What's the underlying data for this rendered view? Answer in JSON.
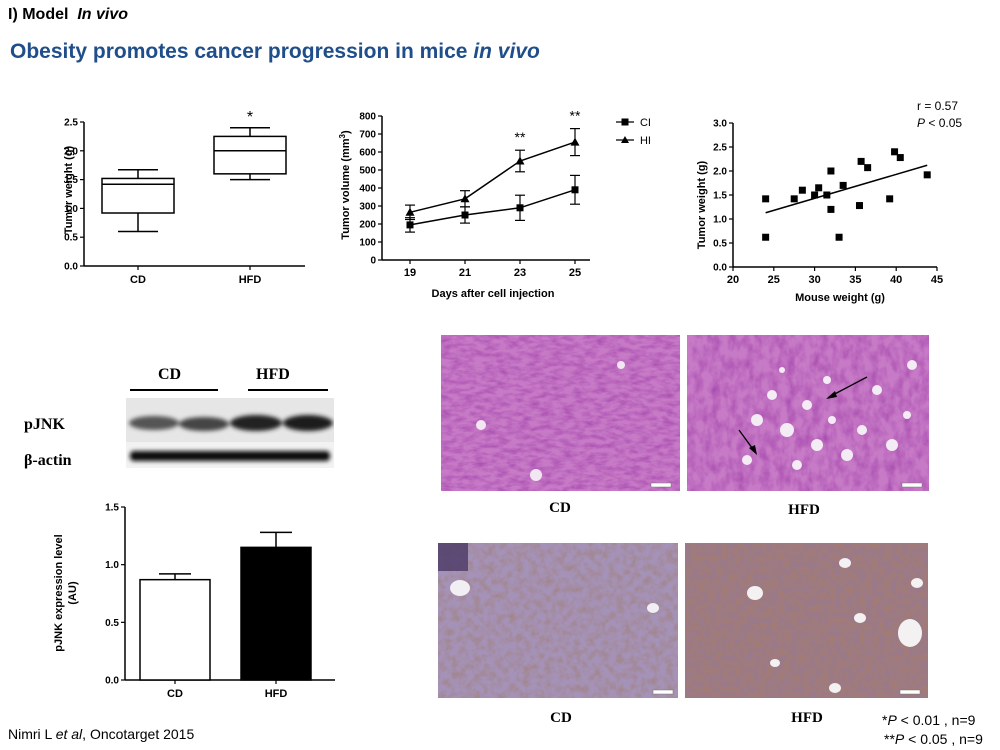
{
  "header": {
    "section_label": "I) Model",
    "section_italic": "In vivo",
    "title_main": "Obesity promotes cancer progression in mice ",
    "title_italic": "in vivo"
  },
  "citation": {
    "authors": "Nimri L ",
    "etal": "et al",
    "source": ", Oncotarget 2015"
  },
  "footnotes": {
    "note1_prefix": "*",
    "note1_p": "P",
    "note1_rest": " < 0.01 , n=9",
    "note2_prefix": "**",
    "note2_p": "P",
    "note2_rest": " < 0.05 , n=9"
  },
  "western_blot": {
    "group_labels": [
      "CD",
      "HFD"
    ],
    "row_labels": [
      "pJNK",
      "β-actin"
    ]
  },
  "histology": {
    "he_labels": [
      "CD",
      "HFD"
    ],
    "ihc_labels": [
      "CD",
      "HFD"
    ]
  },
  "colors": {
    "title": "#1f4e8a",
    "he_stain": "#b05bb0",
    "ihc_stain": "#8f7aa8"
  },
  "chart_data": [
    {
      "type": "box",
      "ylabel": "Tumor weight (g)",
      "categories": [
        "CD",
        "HFD"
      ],
      "yticks": [
        "0.0",
        "0.5",
        "1.0",
        "1.5",
        "2.0",
        "2.5"
      ],
      "ylim": [
        0,
        2.5
      ],
      "boxes": [
        {
          "min": 0.6,
          "q1": 0.92,
          "median": 1.42,
          "q3": 1.52,
          "max": 1.67
        },
        {
          "min": 1.5,
          "q1": 1.6,
          "median": 2.0,
          "q3": 2.25,
          "max": 2.4
        }
      ],
      "annotations": [
        "",
        "*"
      ]
    },
    {
      "type": "line",
      "xlabel": "Days after cell injection",
      "ylabel": "Tumor volume (mm",
      "ylabel_sup": "3",
      "ylabel_close": ")",
      "x": [
        19,
        21,
        23,
        25
      ],
      "xticks": [
        "19",
        "21",
        "23",
        "25"
      ],
      "yticks": [
        "0",
        "100",
        "200",
        "300",
        "400",
        "500",
        "600",
        "700",
        "800"
      ],
      "ylim": [
        0,
        800
      ],
      "series": [
        {
          "name": "CD",
          "marker": "square",
          "values": [
            195,
            250,
            290,
            390
          ],
          "errors": [
            40,
            45,
            70,
            80
          ]
        },
        {
          "name": "HFD",
          "marker": "triangle",
          "values": [
            265,
            340,
            550,
            655
          ],
          "errors": [
            40,
            45,
            60,
            75
          ]
        }
      ],
      "annotations": [
        {
          "x": 23,
          "text": "**"
        },
        {
          "x": 25,
          "text": "**"
        }
      ],
      "legend": "top-right"
    },
    {
      "type": "scatter",
      "xlabel": "Mouse weight (g)",
      "ylabel": "Tumor weight (g)",
      "xticks": [
        "20",
        "25",
        "30",
        "35",
        "40",
        "45"
      ],
      "yticks": [
        "0.0",
        "0.5",
        "1.0",
        "1.5",
        "2.0",
        "2.5",
        "3.0"
      ],
      "xlim": [
        20,
        45
      ],
      "ylim": [
        0,
        3.0
      ],
      "points": [
        [
          24,
          1.42
        ],
        [
          24,
          0.62
        ],
        [
          27.5,
          1.42
        ],
        [
          28.5,
          1.6
        ],
        [
          30,
          1.5
        ],
        [
          30.5,
          1.65
        ],
        [
          31.5,
          1.5
        ],
        [
          32,
          2.0
        ],
        [
          32,
          1.2
        ],
        [
          33,
          0.62
        ],
        [
          33.5,
          1.7
        ],
        [
          35.5,
          1.28
        ],
        [
          35.7,
          2.2
        ],
        [
          36.5,
          2.07
        ],
        [
          39.2,
          1.42
        ],
        [
          39.8,
          2.4
        ],
        [
          40.5,
          2.28
        ],
        [
          43.8,
          1.92
        ]
      ],
      "fit": {
        "x": [
          24,
          43.8
        ],
        "y": [
          1.13,
          2.12
        ]
      },
      "stats_r": "r = 0.57",
      "stats_p_label": "P",
      "stats_p_rest": " < 0.05"
    },
    {
      "type": "bar",
      "ylabel": "pJNK expression level",
      "ylabel2": "(AU)",
      "categories": [
        "CD",
        "HFD"
      ],
      "values": [
        0.87,
        1.15
      ],
      "errors": [
        0.05,
        0.13
      ],
      "fills": [
        "#ffffff",
        "#000000"
      ],
      "yticks": [
        "0.0",
        "0.5",
        "1.0",
        "1.5"
      ],
      "ylim": [
        0,
        1.5
      ]
    }
  ]
}
